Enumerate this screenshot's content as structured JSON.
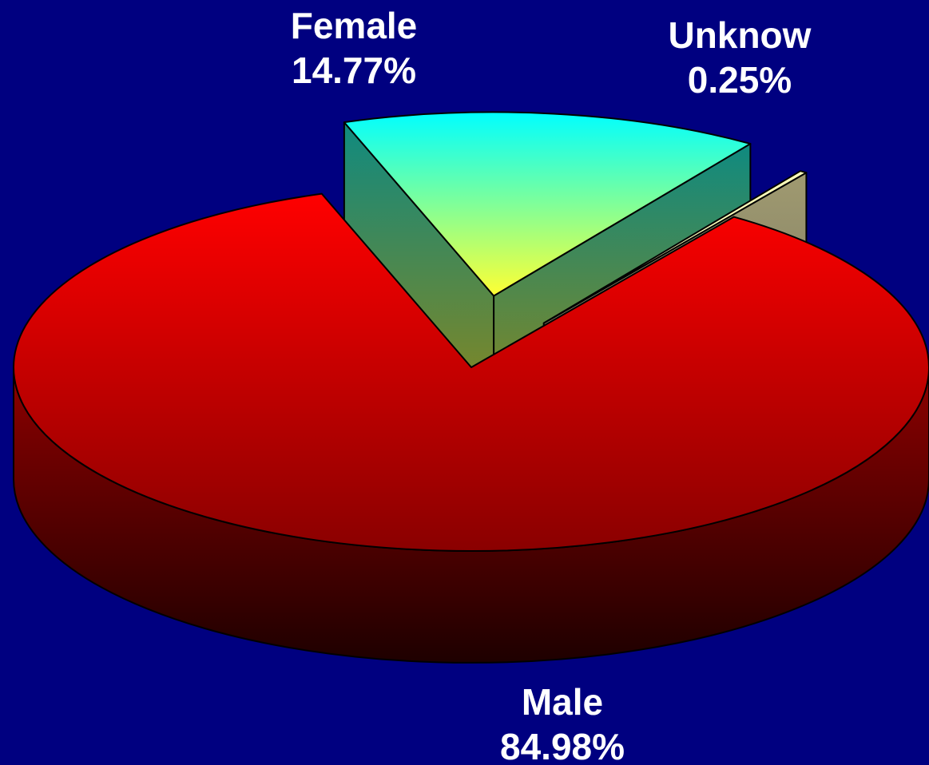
{
  "chart_data": {
    "type": "pie",
    "title": "",
    "slices": [
      {
        "label": "Male",
        "value": 84.98,
        "value_label": "84.98%",
        "color": "#ff0000"
      },
      {
        "label": "Female",
        "value": 14.77,
        "value_label": "14.77%",
        "color": "#00ffff"
      },
      {
        "label": "Unknow",
        "value": 0.25,
        "value_label": "0.25%",
        "color": "#ffff99"
      }
    ],
    "exploded": [
      "Female",
      "Unknow"
    ],
    "style": "3d"
  },
  "colors": {
    "background": "#000080",
    "label_text": "#ffffff"
  }
}
